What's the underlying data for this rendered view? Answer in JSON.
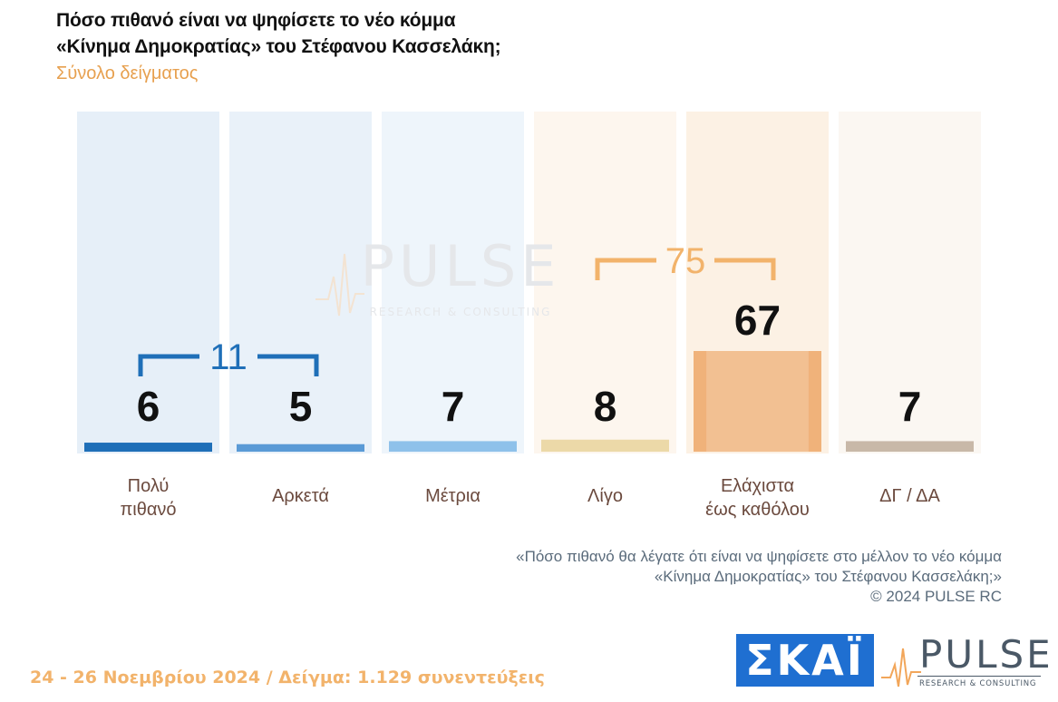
{
  "header": {
    "title_line1": "Πόσο πιθανό είναι να ψηφίσετε το νέο κόμμα",
    "title_line2": "«Κίνημα Δημοκρατίας» του Στέφανου Κασσελάκη;",
    "subtitle": "Σύνολο δείγματος"
  },
  "chart_data": {
    "type": "bar",
    "title": "Πόσο πιθανό είναι να ψηφίσετε το νέο κόμμα «Κίνημα Δημοκρατίας» του Στέφανου Κασσελάκη;",
    "subtitle": "Σύνολο δείγματος",
    "categories": [
      [
        "Πολύ",
        "πιθανό"
      ],
      [
        "Αρκετά"
      ],
      [
        "Μέτρια"
      ],
      [
        "Λίγο"
      ],
      [
        "Ελάχιστα",
        "έως καθόλου"
      ],
      [
        "ΔΓ / ΔΑ"
      ]
    ],
    "values": [
      6,
      5,
      7,
      8,
      67,
      7
    ],
    "ylim": [
      0,
      100
    ],
    "grid": false,
    "legend": "none",
    "colors": [
      "#1f6fb8",
      "#5a9ad6",
      "#8ec1ea",
      "#ecd9a8",
      "#f0b27a",
      "#c8b8a8"
    ],
    "background_colors": [
      "#e6eff8",
      "#e9f1f9",
      "#eef5fb",
      "#fdf6ee",
      "#fcf1e4",
      "#fbf7f2"
    ],
    "annotations": [
      {
        "label": "11",
        "from": 0,
        "to": 1,
        "color": "#1f6fb8"
      },
      {
        "label": "75",
        "from": 3,
        "to": 4,
        "color": "#f2b36b"
      }
    ],
    "watermark": {
      "text": "PULSE",
      "sub": "RESEARCH & CONSULTING"
    }
  },
  "footnote": {
    "line1": "«Πόσο πιθανό θα λέγατε ότι είναι να ψηφίσετε στο μέλλον το νέο κόμμα",
    "line2": "«Κίνημα Δημοκρατίας» του Στέφανου Κασσελάκη;»",
    "line3": "©  2024  PULSE RC"
  },
  "bottom": {
    "date_sample": "24 - 26 Νοεμβρίου 2024  /  Δείγμα:  1.129 συνεντεύξεις",
    "skai_logo": "ΣΚΑΪ",
    "pulse_logo": "PULSE",
    "pulse_logo_sub": "RESEARCH & CONSULTING"
  }
}
